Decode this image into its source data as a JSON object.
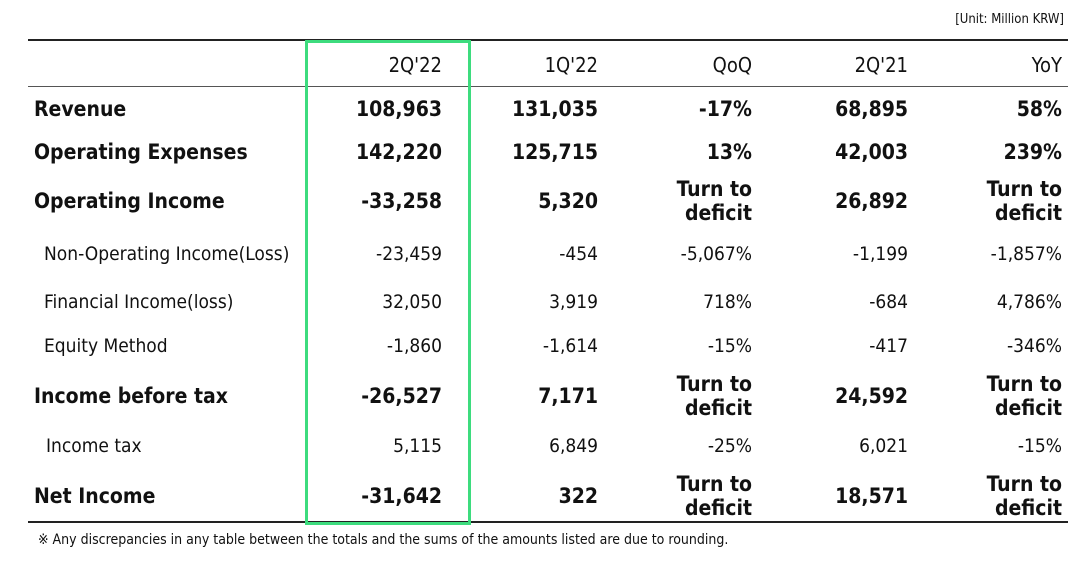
{
  "header": {
    "unit": "[Unit: Million KRW]"
  },
  "table": {
    "columns": [
      "2Q'22",
      "1Q'22",
      "QoQ",
      "2Q'21",
      "YoY"
    ],
    "rows": [
      {
        "label": "Revenue",
        "cells": [
          "108,963",
          "131,035",
          "-17%",
          "68,895",
          "58%"
        ]
      },
      {
        "label": "Operating Expenses",
        "cells": [
          "142,220",
          "125,715",
          "13%",
          "42,003",
          "239%"
        ]
      },
      {
        "label": "Operating Income",
        "cells": [
          "-33,258",
          "5,320",
          "Turn to deficit",
          "26,892",
          "Turn to deficit"
        ]
      },
      {
        "label": "Non-Operating Income(Loss)",
        "cells": [
          "-23,459",
          "-454",
          "-5,067%",
          "-1,199",
          "-1,857%"
        ]
      },
      {
        "label": "Financial Income(loss)",
        "cells": [
          "32,050",
          "3,919",
          "718%",
          "-684",
          "4,786%"
        ]
      },
      {
        "label": "Equity Method",
        "cells": [
          "-1,860",
          "-1,614",
          "-15%",
          "-417",
          "-346%"
        ]
      },
      {
        "label": "Income before tax",
        "cells": [
          "-26,527",
          "7,171",
          "Turn to deficit",
          "24,592",
          "Turn to deficit"
        ]
      },
      {
        "label": "Income tax",
        "cells": [
          "5,115",
          "6,849",
          "-25%",
          "6,021",
          "-15%"
        ]
      },
      {
        "label": "Net Income",
        "cells": [
          "-31,642",
          "322",
          "Turn to deficit",
          "18,571",
          "Turn to deficit"
        ]
      }
    ]
  },
  "footnote": "※ Any discrepancies in any table between the totals and the sums of the amounts listed are due to rounding."
}
